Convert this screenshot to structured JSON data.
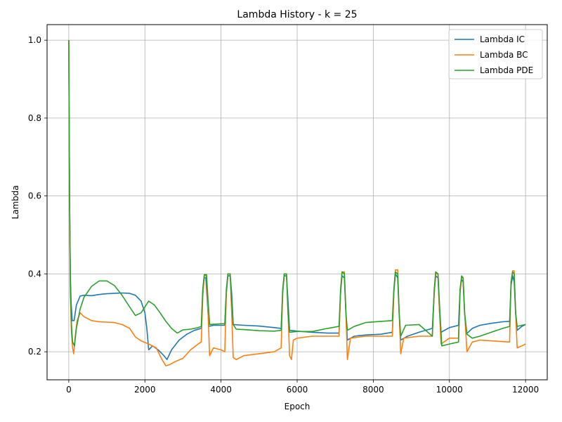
{
  "chart_data": {
    "type": "line",
    "title": "Lambda History - k = 25",
    "xlabel": "Epoch",
    "ylabel": "Lambda",
    "xlim": [
      -570,
      12570
    ],
    "ylim": [
      0.128,
      1.04
    ],
    "xticks": [
      0,
      2000,
      4000,
      6000,
      8000,
      10000,
      12000
    ],
    "yticks": [
      0.2,
      0.4,
      0.6,
      0.8,
      1.0
    ],
    "xtick_labels": [
      "0",
      "2000",
      "4000",
      "6000",
      "8000",
      "10000",
      "12000"
    ],
    "ytick_labels": [
      "0.2",
      "0.4",
      "0.6",
      "0.8",
      "1.0"
    ],
    "grid": true,
    "legend_position": "top-right",
    "series": [
      {
        "name": "Lambda IC",
        "color": "#1f77b4",
        "points": [
          [
            0,
            1.0
          ],
          [
            20,
            0.6
          ],
          [
            40,
            0.4
          ],
          [
            60,
            0.33
          ],
          [
            90,
            0.28
          ],
          [
            140,
            0.28
          ],
          [
            200,
            0.32
          ],
          [
            300,
            0.343
          ],
          [
            400,
            0.345
          ],
          [
            600,
            0.344
          ],
          [
            800,
            0.347
          ],
          [
            1000,
            0.349
          ],
          [
            1200,
            0.35
          ],
          [
            1400,
            0.351
          ],
          [
            1600,
            0.35
          ],
          [
            1750,
            0.345
          ],
          [
            1900,
            0.33
          ],
          [
            2000,
            0.3
          ],
          [
            2050,
            0.26
          ],
          [
            2100,
            0.205
          ],
          [
            2200,
            0.215
          ],
          [
            2350,
            0.205
          ],
          [
            2500,
            0.19
          ],
          [
            2580,
            0.18
          ],
          [
            2700,
            0.205
          ],
          [
            2900,
            0.23
          ],
          [
            3100,
            0.245
          ],
          [
            3300,
            0.255
          ],
          [
            3480,
            0.26
          ],
          [
            3520,
            0.35
          ],
          [
            3560,
            0.39
          ],
          [
            3600,
            0.39
          ],
          [
            3640,
            0.33
          ],
          [
            3680,
            0.265
          ],
          [
            3800,
            0.268
          ],
          [
            4000,
            0.268
          ],
          [
            4100,
            0.268
          ],
          [
            4140,
            0.35
          ],
          [
            4180,
            0.395
          ],
          [
            4240,
            0.395
          ],
          [
            4280,
            0.35
          ],
          [
            4320,
            0.27
          ],
          [
            4600,
            0.268
          ],
          [
            5000,
            0.266
          ],
          [
            5400,
            0.262
          ],
          [
            5580,
            0.26
          ],
          [
            5620,
            0.35
          ],
          [
            5660,
            0.395
          ],
          [
            5720,
            0.395
          ],
          [
            5760,
            0.33
          ],
          [
            5800,
            0.255
          ],
          [
            6000,
            0.253
          ],
          [
            6400,
            0.25
          ],
          [
            6800,
            0.248
          ],
          [
            7100,
            0.248
          ],
          [
            7140,
            0.35
          ],
          [
            7180,
            0.395
          ],
          [
            7240,
            0.39
          ],
          [
            7280,
            0.3
          ],
          [
            7320,
            0.23
          ],
          [
            7500,
            0.24
          ],
          [
            7800,
            0.243
          ],
          [
            8200,
            0.245
          ],
          [
            8500,
            0.25
          ],
          [
            8540,
            0.35
          ],
          [
            8580,
            0.4
          ],
          [
            8640,
            0.39
          ],
          [
            8680,
            0.3
          ],
          [
            8720,
            0.23
          ],
          [
            8900,
            0.24
          ],
          [
            9200,
            0.25
          ],
          [
            9550,
            0.26
          ],
          [
            9600,
            0.35
          ],
          [
            9640,
            0.395
          ],
          [
            9700,
            0.39
          ],
          [
            9740,
            0.3
          ],
          [
            9780,
            0.25
          ],
          [
            10000,
            0.262
          ],
          [
            10240,
            0.268
          ],
          [
            10280,
            0.36
          ],
          [
            10320,
            0.385
          ],
          [
            10360,
            0.38
          ],
          [
            10400,
            0.3
          ],
          [
            10440,
            0.245
          ],
          [
            10600,
            0.26
          ],
          [
            10800,
            0.268
          ],
          [
            11100,
            0.273
          ],
          [
            11400,
            0.277
          ],
          [
            11580,
            0.278
          ],
          [
            11620,
            0.37
          ],
          [
            11660,
            0.395
          ],
          [
            11700,
            0.38
          ],
          [
            11740,
            0.3
          ],
          [
            11780,
            0.255
          ],
          [
            11900,
            0.265
          ],
          [
            12000,
            0.27
          ]
        ]
      },
      {
        "name": "Lambda BC",
        "color": "#ff7f0e",
        "points": [
          [
            0,
            1.0
          ],
          [
            20,
            0.6
          ],
          [
            40,
            0.35
          ],
          [
            70,
            0.25
          ],
          [
            100,
            0.21
          ],
          [
            130,
            0.195
          ],
          [
            170,
            0.24
          ],
          [
            220,
            0.28
          ],
          [
            300,
            0.3
          ],
          [
            400,
            0.29
          ],
          [
            600,
            0.28
          ],
          [
            800,
            0.277
          ],
          [
            1000,
            0.276
          ],
          [
            1200,
            0.275
          ],
          [
            1400,
            0.27
          ],
          [
            1600,
            0.26
          ],
          [
            1750,
            0.238
          ],
          [
            1900,
            0.228
          ],
          [
            2100,
            0.22
          ],
          [
            2300,
            0.21
          ],
          [
            2450,
            0.18
          ],
          [
            2550,
            0.164
          ],
          [
            2650,
            0.167
          ],
          [
            2800,
            0.175
          ],
          [
            3000,
            0.183
          ],
          [
            3200,
            0.205
          ],
          [
            3400,
            0.22
          ],
          [
            3480,
            0.225
          ],
          [
            3520,
            0.34
          ],
          [
            3560,
            0.395
          ],
          [
            3620,
            0.395
          ],
          [
            3660,
            0.3
          ],
          [
            3700,
            0.19
          ],
          [
            3800,
            0.21
          ],
          [
            4000,
            0.205
          ],
          [
            4100,
            0.2
          ],
          [
            4140,
            0.35
          ],
          [
            4180,
            0.4
          ],
          [
            4240,
            0.4
          ],
          [
            4280,
            0.3
          ],
          [
            4320,
            0.185
          ],
          [
            4400,
            0.18
          ],
          [
            4600,
            0.19
          ],
          [
            5000,
            0.195
          ],
          [
            5400,
            0.2
          ],
          [
            5580,
            0.21
          ],
          [
            5620,
            0.35
          ],
          [
            5660,
            0.4
          ],
          [
            5720,
            0.4
          ],
          [
            5760,
            0.3
          ],
          [
            5800,
            0.19
          ],
          [
            5850,
            0.18
          ],
          [
            5900,
            0.23
          ],
          [
            6000,
            0.235
          ],
          [
            6400,
            0.24
          ],
          [
            6800,
            0.24
          ],
          [
            7100,
            0.24
          ],
          [
            7140,
            0.35
          ],
          [
            7180,
            0.405
          ],
          [
            7240,
            0.405
          ],
          [
            7280,
            0.3
          ],
          [
            7320,
            0.18
          ],
          [
            7400,
            0.235
          ],
          [
            7800,
            0.24
          ],
          [
            8200,
            0.24
          ],
          [
            8500,
            0.24
          ],
          [
            8540,
            0.35
          ],
          [
            8580,
            0.41
          ],
          [
            8640,
            0.41
          ],
          [
            8680,
            0.3
          ],
          [
            8720,
            0.195
          ],
          [
            8800,
            0.235
          ],
          [
            9200,
            0.24
          ],
          [
            9550,
            0.24
          ],
          [
            9600,
            0.35
          ],
          [
            9640,
            0.4
          ],
          [
            9700,
            0.4
          ],
          [
            9740,
            0.3
          ],
          [
            9780,
            0.22
          ],
          [
            10000,
            0.235
          ],
          [
            10240,
            0.235
          ],
          [
            10280,
            0.35
          ],
          [
            10320,
            0.39
          ],
          [
            10360,
            0.39
          ],
          [
            10400,
            0.3
          ],
          [
            10460,
            0.2
          ],
          [
            10600,
            0.225
          ],
          [
            10800,
            0.23
          ],
          [
            11100,
            0.228
          ],
          [
            11400,
            0.226
          ],
          [
            11580,
            0.225
          ],
          [
            11620,
            0.38
          ],
          [
            11660,
            0.408
          ],
          [
            11700,
            0.408
          ],
          [
            11740,
            0.3
          ],
          [
            11780,
            0.21
          ],
          [
            11900,
            0.215
          ],
          [
            12000,
            0.22
          ]
        ]
      },
      {
        "name": "Lambda PDE",
        "color": "#2ca02c",
        "points": [
          [
            0,
            1.0
          ],
          [
            20,
            0.6
          ],
          [
            40,
            0.38
          ],
          [
            70,
            0.27
          ],
          [
            100,
            0.225
          ],
          [
            150,
            0.215
          ],
          [
            200,
            0.26
          ],
          [
            300,
            0.31
          ],
          [
            400,
            0.34
          ],
          [
            600,
            0.368
          ],
          [
            800,
            0.382
          ],
          [
            1000,
            0.382
          ],
          [
            1200,
            0.37
          ],
          [
            1400,
            0.345
          ],
          [
            1600,
            0.315
          ],
          [
            1750,
            0.293
          ],
          [
            1900,
            0.3
          ],
          [
            2100,
            0.33
          ],
          [
            2250,
            0.32
          ],
          [
            2400,
            0.3
          ],
          [
            2550,
            0.278
          ],
          [
            2700,
            0.26
          ],
          [
            2850,
            0.248
          ],
          [
            3000,
            0.256
          ],
          [
            3200,
            0.258
          ],
          [
            3400,
            0.262
          ],
          [
            3480,
            0.265
          ],
          [
            3520,
            0.36
          ],
          [
            3560,
            0.398
          ],
          [
            3620,
            0.398
          ],
          [
            3660,
            0.33
          ],
          [
            3700,
            0.27
          ],
          [
            4000,
            0.272
          ],
          [
            4100,
            0.272
          ],
          [
            4140,
            0.36
          ],
          [
            4180,
            0.4
          ],
          [
            4240,
            0.4
          ],
          [
            4280,
            0.33
          ],
          [
            4320,
            0.27
          ],
          [
            4400,
            0.258
          ],
          [
            4600,
            0.257
          ],
          [
            5000,
            0.254
          ],
          [
            5400,
            0.253
          ],
          [
            5580,
            0.255
          ],
          [
            5620,
            0.36
          ],
          [
            5660,
            0.4
          ],
          [
            5720,
            0.4
          ],
          [
            5760,
            0.3
          ],
          [
            5800,
            0.25
          ],
          [
            6000,
            0.252
          ],
          [
            6400,
            0.252
          ],
          [
            6800,
            0.26
          ],
          [
            7100,
            0.265
          ],
          [
            7140,
            0.36
          ],
          [
            7180,
            0.405
          ],
          [
            7240,
            0.4
          ],
          [
            7280,
            0.3
          ],
          [
            7320,
            0.255
          ],
          [
            7500,
            0.265
          ],
          [
            7800,
            0.275
          ],
          [
            8200,
            0.278
          ],
          [
            8500,
            0.28
          ],
          [
            8540,
            0.36
          ],
          [
            8580,
            0.405
          ],
          [
            8640,
            0.4
          ],
          [
            8680,
            0.3
          ],
          [
            8720,
            0.24
          ],
          [
            8850,
            0.268
          ],
          [
            9200,
            0.27
          ],
          [
            9550,
            0.24
          ],
          [
            9600,
            0.36
          ],
          [
            9640,
            0.405
          ],
          [
            9700,
            0.4
          ],
          [
            9740,
            0.32
          ],
          [
            9800,
            0.215
          ],
          [
            10000,
            0.22
          ],
          [
            10240,
            0.225
          ],
          [
            10280,
            0.36
          ],
          [
            10320,
            0.395
          ],
          [
            10360,
            0.39
          ],
          [
            10400,
            0.3
          ],
          [
            10460,
            0.245
          ],
          [
            10600,
            0.235
          ],
          [
            10800,
            0.24
          ],
          [
            11100,
            0.25
          ],
          [
            11400,
            0.26
          ],
          [
            11580,
            0.265
          ],
          [
            11620,
            0.38
          ],
          [
            11660,
            0.405
          ],
          [
            11700,
            0.4
          ],
          [
            11740,
            0.3
          ],
          [
            11780,
            0.265
          ],
          [
            11900,
            0.268
          ],
          [
            12000,
            0.27
          ]
        ]
      }
    ]
  }
}
